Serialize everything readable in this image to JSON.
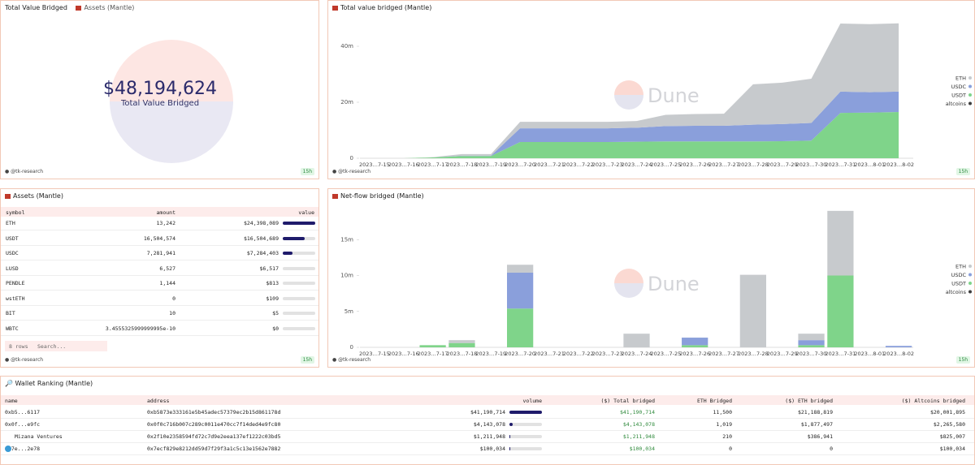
{
  "counter": {
    "title": "Total Value Bridged",
    "tab": "Assets (Mantle)",
    "value": "$48,194,624",
    "label": "Total Value Bridged",
    "author": "@tk-research",
    "age": "15h"
  },
  "chart_data": [
    {
      "type": "area",
      "title": "Total value bridged (Mantle)",
      "watermark": "Dune",
      "author": "@tk-research",
      "age": "15h",
      "legend": "right",
      "categories": [
        "2023…7-15",
        "2023…7-16",
        "2023…7-17",
        "2023…7-18",
        "2023…7-19",
        "2023…7-20",
        "2023…7-21",
        "2023…7-22",
        "2023…7-23",
        "2023…7-24",
        "2023…7-25",
        "2023…7-26",
        "2023…7-27",
        "2023…7-28",
        "2023…7-29",
        "2023…7-30",
        "2023…7-31",
        "2023…8-01",
        "2023…8-02"
      ],
      "series": [
        {
          "name": "ETH",
          "color": "#c7cacd",
          "values": [
            0,
            0,
            0.1,
            0.6,
            0.6,
            2.3,
            2.3,
            2.3,
            2.3,
            2.4,
            4.0,
            4.2,
            4.3,
            14.4,
            14.8,
            15.8,
            24.3,
            24.3,
            24.4
          ]
        },
        {
          "name": "USDC",
          "color": "#8a9fdb",
          "values": [
            0,
            0,
            0,
            0.1,
            0.1,
            4.9,
            4.9,
            4.9,
            4.9,
            5.0,
            5.5,
            5.6,
            5.6,
            6.0,
            6.1,
            6.3,
            7.6,
            7.3,
            7.28
          ]
        },
        {
          "name": "USDT",
          "color": "#7fd48a",
          "values": [
            0,
            0,
            0.3,
            0.8,
            0.8,
            5.8,
            5.8,
            5.8,
            5.8,
            5.9,
            6.0,
            6.0,
            6.0,
            6.0,
            6.1,
            6.3,
            16.2,
            16.3,
            16.5
          ]
        },
        {
          "name": "altcoins",
          "color": "#3d3d3d",
          "values": [
            0,
            0,
            0,
            0,
            0,
            0,
            0,
            0,
            0,
            0,
            0,
            0,
            0,
            0,
            0,
            0,
            0,
            0,
            0.01
          ]
        }
      ],
      "ylim": [
        0,
        50
      ],
      "yticks": [
        0,
        {
          "value": 20,
          "label": "20m"
        },
        {
          "value": 40,
          "label": "40m"
        }
      ],
      "grid": false
    },
    {
      "type": "bar",
      "title": "Net-flow bridged (Mantle)",
      "watermark": "Dune",
      "author": "@tk-research",
      "age": "15h",
      "legend": "right",
      "categories": [
        "2023…7-15",
        "2023…7-16",
        "2023…7-17",
        "2023…7-18",
        "2023…7-19",
        "2023…7-20",
        "2023…7-21",
        "2023…7-22",
        "2023…7-23",
        "2023…7-24",
        "2023…7-25",
        "2023…7-26",
        "2023…7-27",
        "2023…7-28",
        "2023…7-29",
        "2023…7-30",
        "2023…7-31",
        "2023…8-01",
        "2023…8-02"
      ],
      "series": [
        {
          "name": "ETH",
          "color": "#c7cacd",
          "values": [
            0,
            0,
            0,
            0.4,
            0,
            1.1,
            0,
            0,
            0,
            1.9,
            0,
            0,
            0,
            10.1,
            0,
            0.9,
            9.0,
            0,
            0
          ]
        },
        {
          "name": "USDC",
          "color": "#8a9fdb",
          "values": [
            0,
            0,
            0,
            0,
            0,
            5.0,
            0,
            0,
            0,
            0,
            0,
            1.05,
            0,
            0,
            0,
            0.7,
            0,
            0,
            0.2
          ]
        },
        {
          "name": "USDT",
          "color": "#7fd48a",
          "values": [
            0,
            0,
            0.3,
            0.6,
            0,
            5.4,
            0,
            0,
            0,
            0,
            0,
            0.3,
            0,
            0,
            0,
            0.3,
            10.0,
            0,
            0
          ]
        },
        {
          "name": "altcoins",
          "color": "#3d3d3d",
          "values": [
            0,
            0,
            0,
            0,
            0,
            0,
            0,
            0,
            0,
            0,
            0,
            0,
            0,
            0,
            0,
            0,
            0,
            0,
            0
          ]
        }
      ],
      "ylim": [
        0,
        20
      ],
      "yticks": [
        0,
        {
          "value": 5,
          "label": "5m"
        },
        {
          "value": 10,
          "label": "10m"
        },
        {
          "value": 15,
          "label": "15m"
        }
      ],
      "grid": false
    }
  ],
  "assets": {
    "title": "Assets (Mantle)",
    "columns": [
      "symbol",
      "amount",
      "value"
    ],
    "rows": [
      [
        "ETH",
        "13,242",
        {
          "value": 24398089,
          "label": "$24,398,089"
        }
      ],
      [
        "USDT",
        "16,504,574",
        {
          "value": 16504689,
          "label": "$16,504,689"
        }
      ],
      [
        "USDC",
        "7,281,941",
        {
          "value": 7284403,
          "label": "$7,284,403"
        }
      ],
      [
        "LUSD",
        "6,527",
        {
          "value": 6517,
          "label": "$6,517"
        }
      ],
      [
        "PENDLE",
        "1,144",
        {
          "value": 813,
          "label": "$813"
        }
      ],
      [
        "wstETH",
        "0",
        {
          "value": 109,
          "label": "$109"
        }
      ],
      [
        "BIT",
        "10",
        {
          "value": 5,
          "label": "$5"
        }
      ],
      [
        "WBTC",
        "3.4555325999999995e-10",
        {
          "value": 0,
          "label": "$0"
        }
      ]
    ],
    "row_count": "8 rows",
    "search": "Search...",
    "author": "@tk-research",
    "age": "15h"
  },
  "wallets": {
    "title": "Wallet Ranking (Mantle)",
    "columns": [
      "name",
      "address",
      "volume",
      "($) Total bridged",
      "ETH Bridged",
      "($) ETH bridged",
      "($) Altcoins bridged"
    ],
    "rows": [
      [
        "0xb5...6117",
        "0xb5873e333161e5b45adec57379ec2b15d861178d",
        {
          "value": 41190714,
          "label": "$41,190,714"
        },
        "$41,190,714",
        "11,500",
        "$21,188,819",
        "$20,001,895"
      ],
      [
        "0x0f...e9fc",
        "0x0f0c716b007c289c0011e470cc7f14ded4e9fc80",
        {
          "value": 4143078,
          "label": "$4,143,078"
        },
        "$4,143,078",
        "1,019",
        "$1,877,497",
        "$2,265,580"
      ],
      [
        "Mizana Ventures",
        "0x2f10e2358594fd72c7d9e2eea137ef1222c03bd5",
        {
          "value": 1211948,
          "label": "$1,211,948"
        },
        "$1,211,948",
        "210",
        "$386,941",
        "$825,007"
      ],
      [
        "0x7e...2e78",
        "0x7ecf829e8212dd59d7f29f3a1c5c13e1562e7882",
        {
          "value": 100034,
          "label": "$100,034"
        },
        "$100,034",
        "0",
        "0",
        "$100,034"
      ]
    ]
  }
}
